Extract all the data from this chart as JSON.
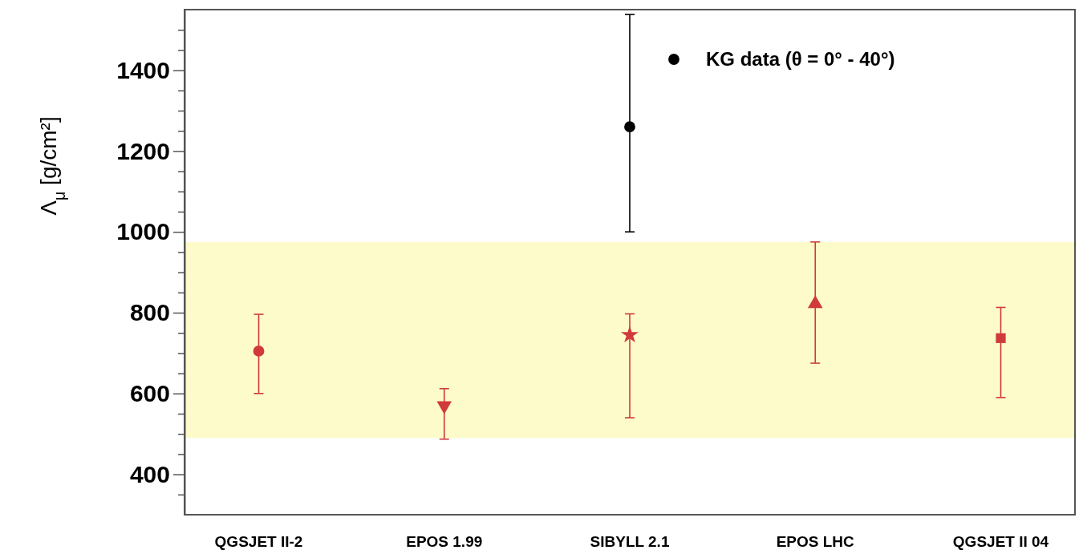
{
  "chart_data": {
    "type": "scatter",
    "ylabel": "Λ$_{μ}$ [g/cm²]",
    "categories": [
      "QGSJET II-2",
      "EPOS 1.99",
      "SIBYLL 2.1",
      "EPOS LHC",
      "QGSJET II 04"
    ],
    "ylim": [
      300,
      1550
    ],
    "yticks": [
      {
        "value": 350,
        "label": null
      },
      400,
      {
        "value": 450,
        "label": null
      },
      {
        "value": 500,
        "label": null
      },
      {
        "value": 550,
        "label": null
      },
      600,
      {
        "value": 650,
        "label": null
      },
      {
        "value": 700,
        "label": null
      },
      {
        "value": 750,
        "label": null
      },
      800,
      {
        "value": 850,
        "label": null
      },
      {
        "value": 900,
        "label": null
      },
      {
        "value": 950,
        "label": null
      },
      1000,
      {
        "value": 1050,
        "label": null
      },
      {
        "value": 1100,
        "label": null
      },
      {
        "value": 1150,
        "label": null
      },
      1200,
      {
        "value": 1250,
        "label": null
      },
      {
        "value": 1300,
        "label": null
      },
      {
        "value": 1350,
        "label": null
      },
      1400,
      {
        "value": 1450,
        "label": null
      },
      {
        "value": 1500,
        "label": null
      }
    ],
    "grid": false,
    "legend": "top right",
    "bands": [
      {
        "axis": "y",
        "from": 490,
        "to": 975,
        "color": "#fdfbc9"
      }
    ],
    "series": [
      {
        "x": [
          "QGSJET II-2"
        ],
        "values": [
          705
        ],
        "errors": [
          [
            600,
            796
          ]
        ],
        "color": "#d03a3a",
        "marker": "circle"
      },
      {
        "x": [
          "EPOS 1.99"
        ],
        "values": [
          570
        ],
        "errors": [
          [
            487,
            612
          ]
        ],
        "color": "#d03a3a",
        "marker": "triangle-down"
      },
      {
        "x": [
          "SIBYLL 2.1"
        ],
        "values": [
          745
        ],
        "errors": [
          [
            540,
            797
          ]
        ],
        "color": "#d03a3a",
        "marker": "star"
      },
      {
        "x": [
          "EPOS LHC"
        ],
        "values": [
          822
        ],
        "errors": [
          [
            675,
            975
          ]
        ],
        "color": "#d03a3a",
        "marker": "triangle"
      },
      {
        "x": [
          "QGSJET II 04"
        ],
        "values": [
          737
        ],
        "errors": [
          [
            590,
            813
          ]
        ],
        "color": "#d03a3a",
        "marker": "square"
      },
      {
        "name": "KG data (θ = 0° - 40°)",
        "x": [
          "SIBYLL 2.1"
        ],
        "values": [
          1260
        ],
        "errors": [
          [
            1000,
            1538
          ]
        ],
        "color": "#000000",
        "marker": "circle"
      }
    ]
  }
}
